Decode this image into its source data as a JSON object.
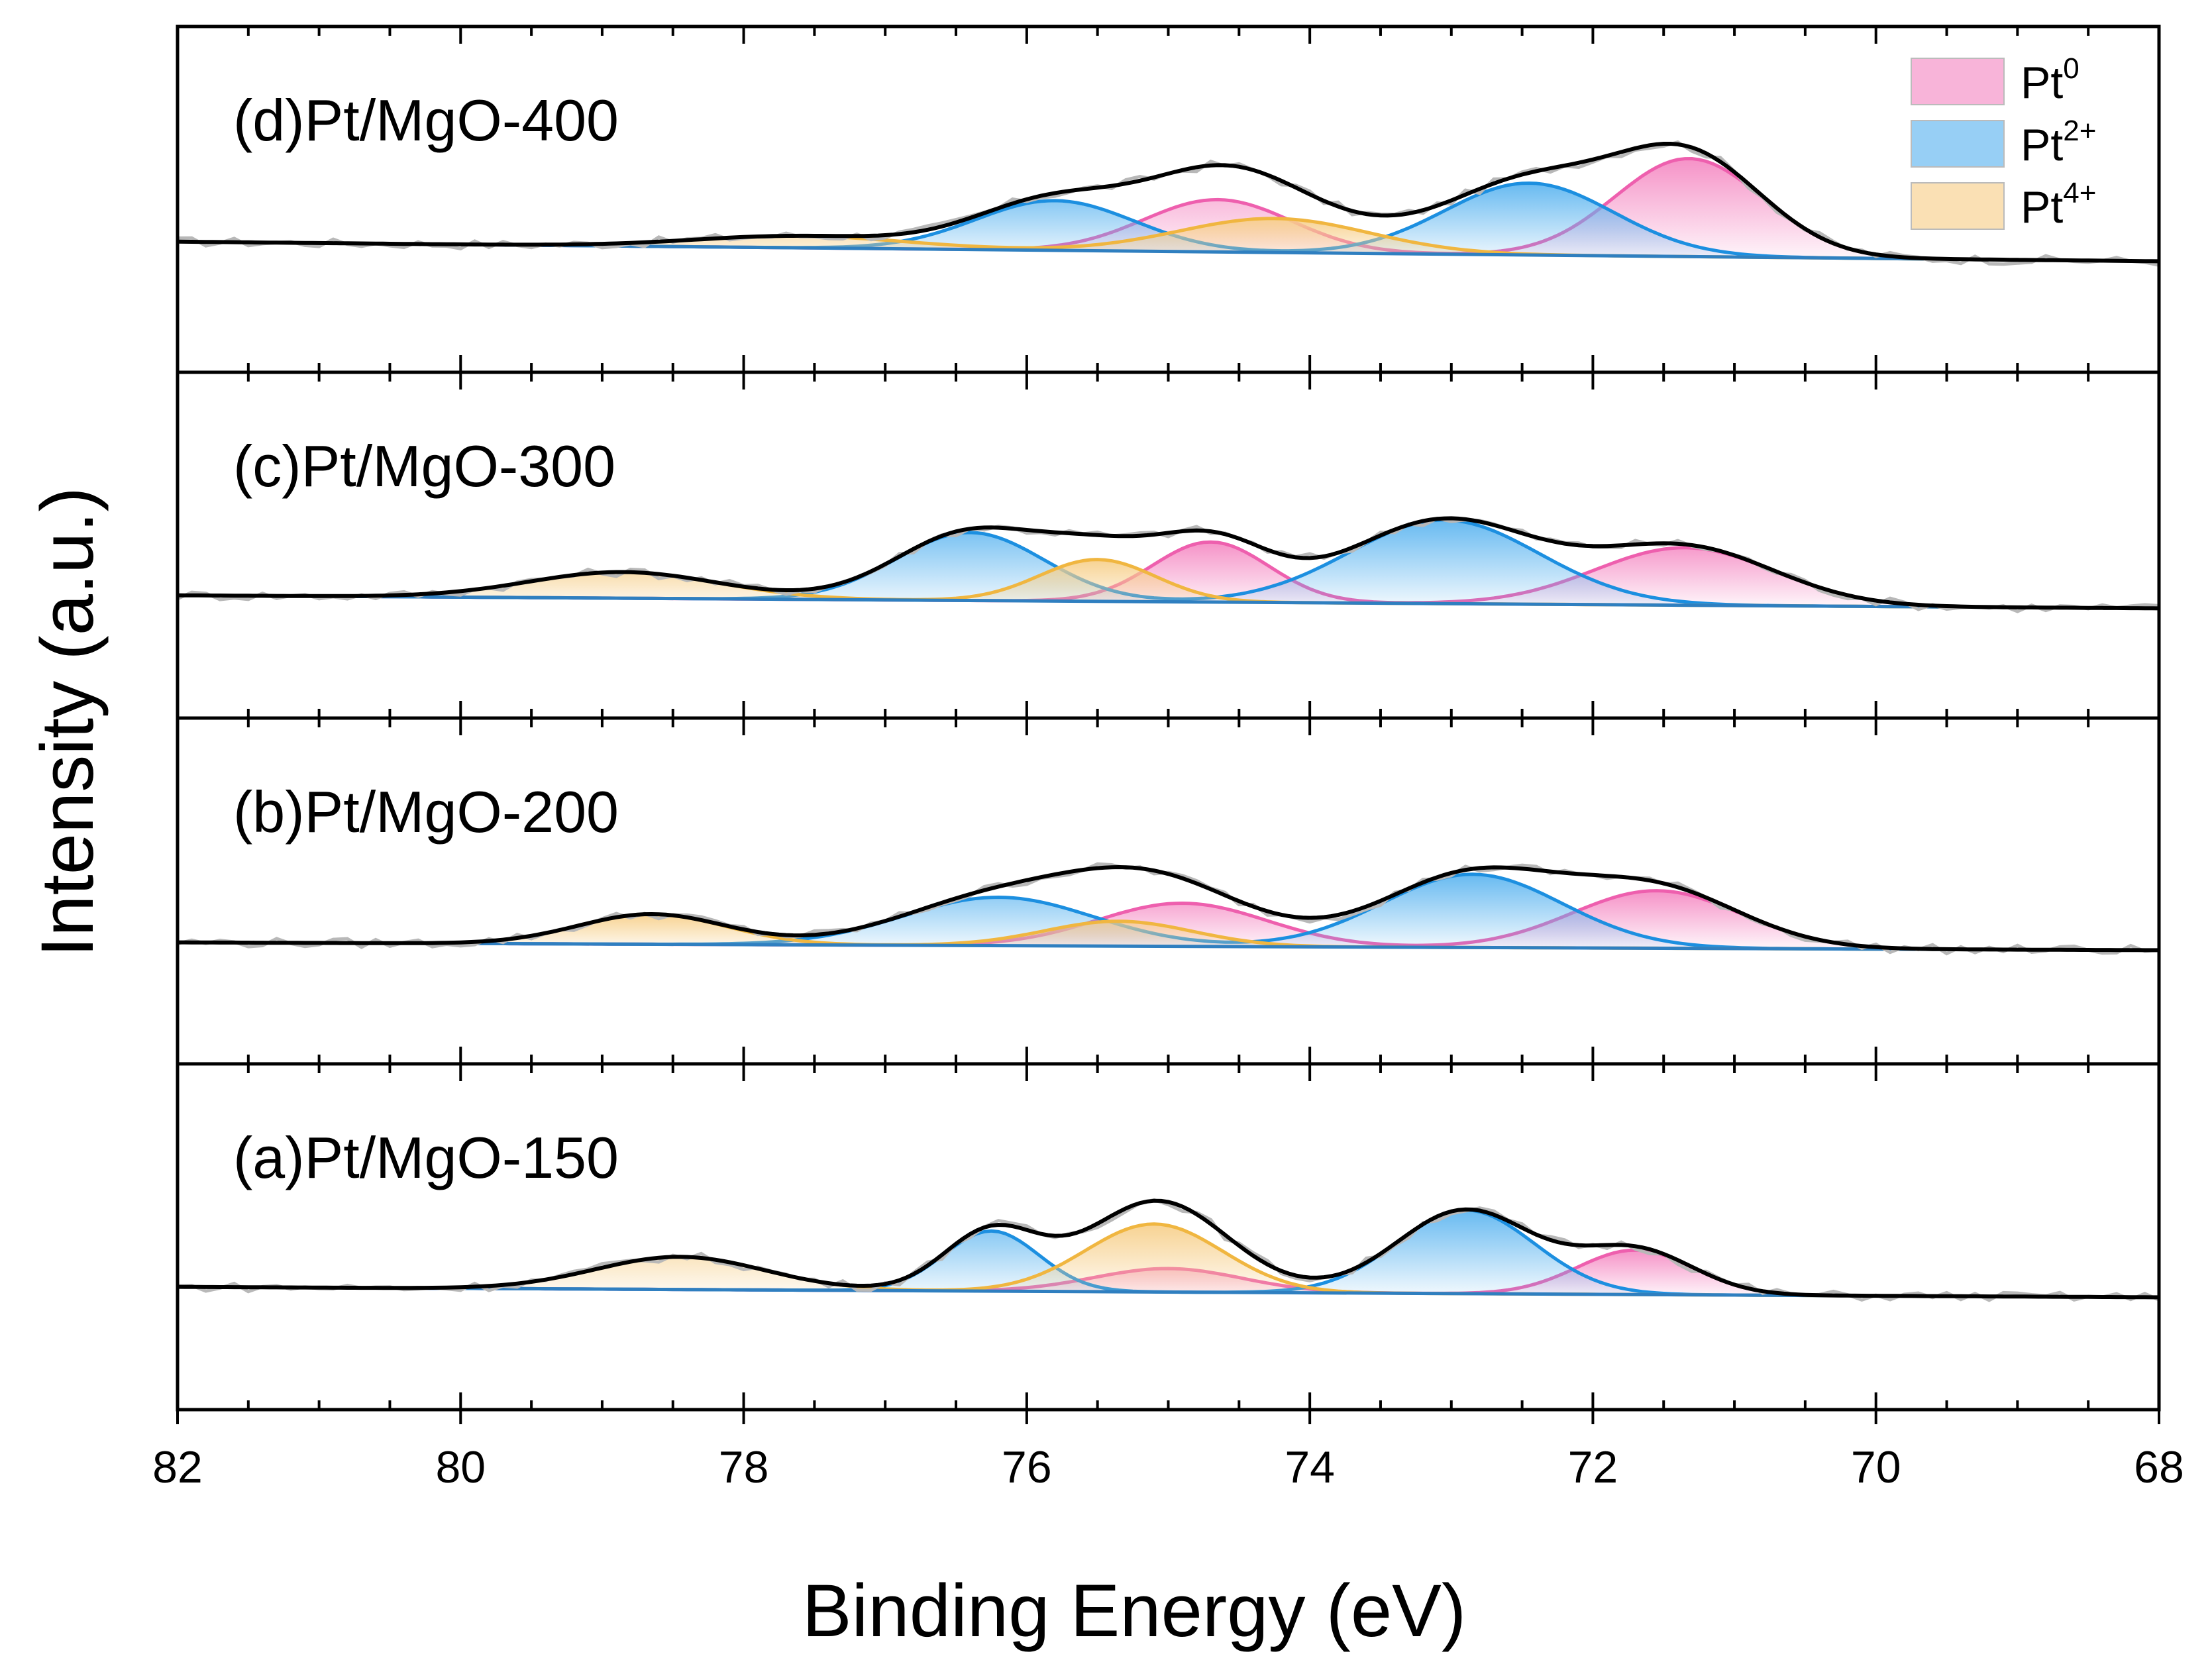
{
  "chart_data": {
    "type": "line",
    "title": "",
    "xlabel": "Binding Energy (eV)",
    "ylabel": "Intensity (a.u.)",
    "xlim": [
      82,
      68
    ],
    "x_ticks": [
      82,
      80,
      78,
      76,
      74,
      72,
      70,
      68
    ],
    "x_tick_labels": [
      "82",
      "80",
      "78",
      "76",
      "74",
      "72",
      "70",
      "68"
    ],
    "yticks_shown": false,
    "legend": {
      "placement": "top-right",
      "entries": [
        {
          "base": "Pt",
          "sup": "0",
          "series": "Pt0",
          "color": "#f58cc4"
        },
        {
          "base": "Pt",
          "sup": "2+",
          "series": "Pt2+",
          "color": "#5fb6f0"
        },
        {
          "base": "Pt",
          "sup": "4+",
          "series": "Pt4+",
          "color": "#f7d08c"
        }
      ]
    },
    "colors": {
      "Pt0_line": "#ee5fae",
      "Pt0_fill": "#f58cc4",
      "Pt2+_line": "#1c8fe0",
      "Pt2+_fill": "#5fb6f0",
      "Pt4+_line": "#f0b640",
      "Pt4+_fill": "#f7d08c",
      "fit": "#000000",
      "raw": "#b8b8b8",
      "background": "#2f7fc0"
    },
    "panels": [
      {
        "label": "(d)Pt/MgO-400",
        "baseline": {
          "left": 0.1,
          "right": -0.05
        },
        "components": [
          {
            "series": "Pt0",
            "peaks": [
              {
                "center": 74.65,
                "height": 0.4,
                "width": 0.7
              },
              {
                "center": 71.32,
                "height": 0.75,
                "width": 0.7
              }
            ]
          },
          {
            "series": "Pt2+",
            "peaks": [
              {
                "center": 75.8,
                "height": 0.38,
                "width": 0.75
              },
              {
                "center": 72.45,
                "height": 0.55,
                "width": 0.8
              }
            ]
          },
          {
            "series": "Pt4+",
            "peaks": [
              {
                "center": 77.6,
                "height": 0.09,
                "width": 1.0
              },
              {
                "center": 74.25,
                "height": 0.26,
                "width": 0.9
              }
            ]
          }
        ]
      },
      {
        "label": "(c)Pt/MgO-300",
        "baseline": {
          "left": 0.04,
          "right": -0.06
        },
        "components": [
          {
            "series": "Pt0",
            "peaks": [
              {
                "center": 74.7,
                "height": 0.46,
                "width": 0.55
              },
              {
                "center": 71.35,
                "height": 0.44,
                "width": 0.85
              }
            ]
          },
          {
            "series": "Pt2+",
            "peaks": [
              {
                "center": 76.4,
                "height": 0.52,
                "width": 0.7
              },
              {
                "center": 73.05,
                "height": 0.64,
                "width": 0.9
              }
            ]
          },
          {
            "series": "Pt4+",
            "peaks": [
              {
                "center": 78.85,
                "height": 0.2,
                "width": 0.9
              },
              {
                "center": 75.5,
                "height": 0.32,
                "width": 0.55
              }
            ]
          }
        ]
      },
      {
        "label": "(b)Pt/MgO-200",
        "baseline": {
          "left": 0.03,
          "right": -0.03
        },
        "components": [
          {
            "series": "Pt0",
            "peaks": [
              {
                "center": 74.9,
                "height": 0.33,
                "width": 0.8
              },
              {
                "center": 71.55,
                "height": 0.44,
                "width": 0.8
              }
            ]
          },
          {
            "series": "Pt2+",
            "peaks": [
              {
                "center": 76.2,
                "height": 0.37,
                "width": 0.9
              },
              {
                "center": 72.85,
                "height": 0.56,
                "width": 0.85
              }
            ]
          },
          {
            "series": "Pt4+",
            "peaks": [
              {
                "center": 78.65,
                "height": 0.23,
                "width": 0.7
              },
              {
                "center": 75.35,
                "height": 0.19,
                "width": 0.7
              }
            ]
          }
        ]
      },
      {
        "label": "(a)Pt/MgO-150",
        "baseline": {
          "left": 0.04,
          "right": -0.04
        },
        "components": [
          {
            "series": "Pt0",
            "peaks": [
              {
                "center": 75.0,
                "height": 0.18,
                "width": 0.7
              },
              {
                "center": 71.7,
                "height": 0.34,
                "width": 0.55
              }
            ]
          },
          {
            "series": "Pt2+",
            "peaks": [
              {
                "center": 76.25,
                "height": 0.46,
                "width": 0.45
              },
              {
                "center": 72.9,
                "height": 0.64,
                "width": 0.65
              }
            ]
          },
          {
            "series": "Pt4+",
            "peaks": [
              {
                "center": 78.45,
                "height": 0.25,
                "width": 0.8
              },
              {
                "center": 75.1,
                "height": 0.52,
                "width": 0.65
              }
            ]
          }
        ]
      }
    ]
  }
}
